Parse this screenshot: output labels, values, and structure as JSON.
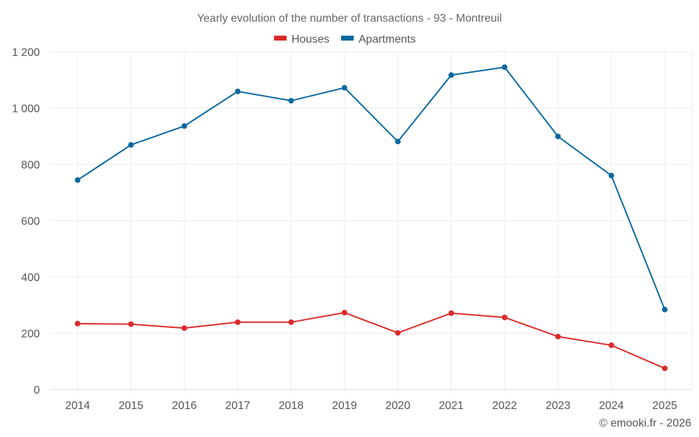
{
  "chart_data": {
    "type": "line",
    "title": "Yearly evolution of the number of transactions - 93 - Montreuil",
    "xlabel": "",
    "ylabel": "",
    "categories": [
      "2014",
      "2015",
      "2016",
      "2017",
      "2018",
      "2019",
      "2020",
      "2021",
      "2022",
      "2023",
      "2024",
      "2025"
    ],
    "series": [
      {
        "name": "Houses",
        "color": "#dc2a2a",
        "values": [
          234,
          232,
          218,
          239,
          239,
          273,
          201,
          271,
          256,
          188,
          157,
          75
        ]
      },
      {
        "name": "Apartments",
        "color": "#0868a0",
        "values": [
          744,
          869,
          936,
          1059,
          1026,
          1072,
          881,
          1117,
          1145,
          899,
          760,
          284
        ]
      }
    ],
    "ylim": [
      0,
      1200
    ],
    "yticks": [
      0,
      200,
      400,
      600,
      800,
      1000,
      1200
    ],
    "ytick_labels": [
      "0",
      "200",
      "400",
      "600",
      "800",
      "1 000",
      "1 200"
    ],
    "grid": true,
    "legend": "top-center"
  },
  "footer": {
    "credit": "© emooki.fr - 2026"
  }
}
